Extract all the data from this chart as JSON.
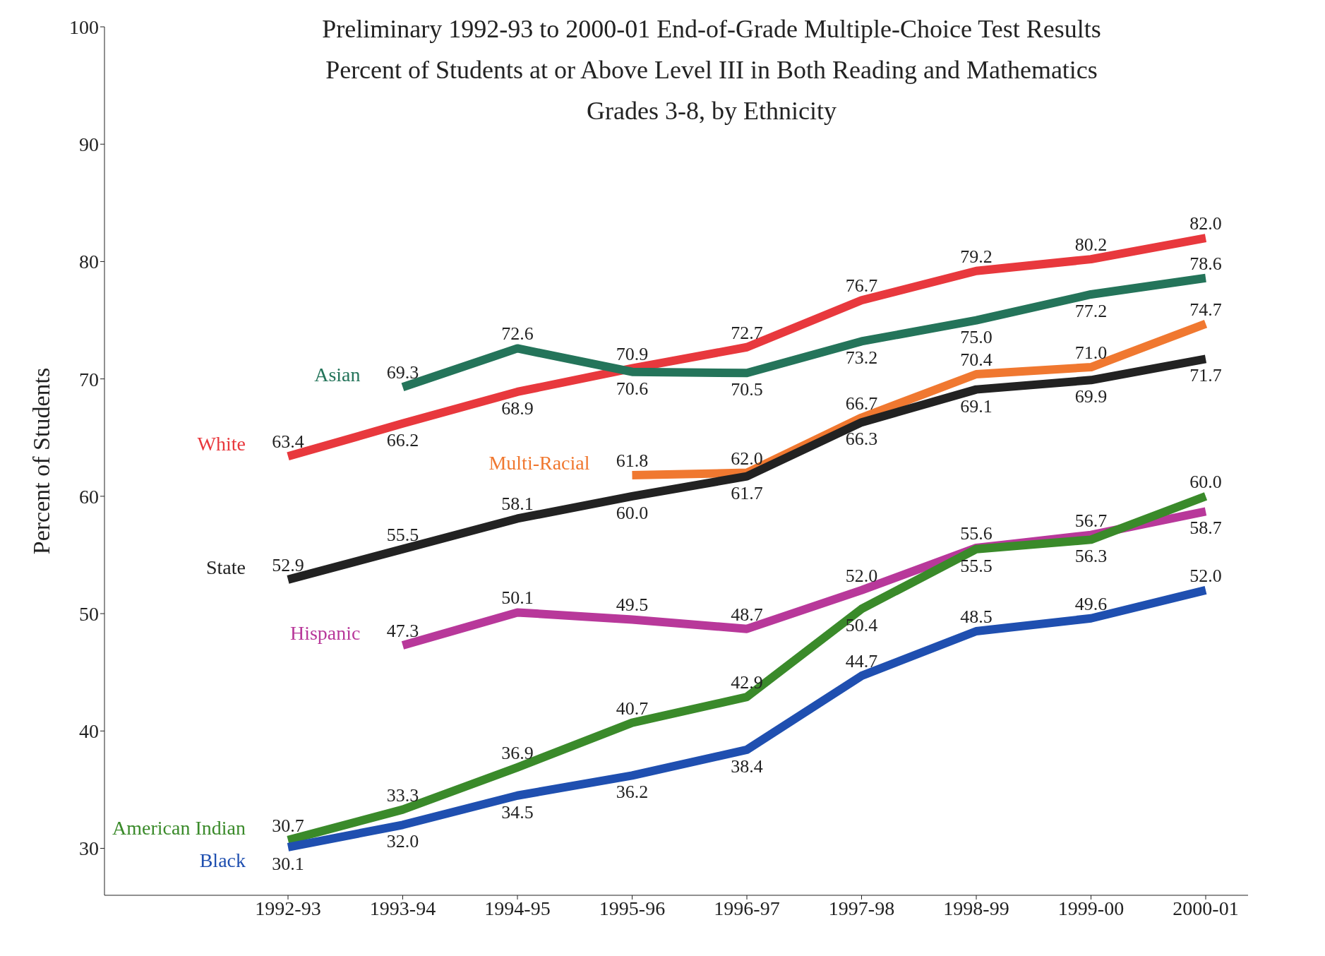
{
  "chart_data": {
    "type": "line",
    "title": "Preliminary 1992-93 to 2000-01 End-of-Grade Multiple-Choice Test Results\nPercent of Students at or Above Level III in Both Reading and Mathematics\nGrades 3-8, by Ethnicity",
    "ylabel": "Percent of Students",
    "categories": [
      "1992-93",
      "1993-94",
      "1994-95",
      "1995-96",
      "1996-97",
      "1997-98",
      "1998-99",
      "1999-00",
      "2000-01"
    ],
    "series": [
      {
        "name": "White",
        "color": "#e8383d",
        "values": [
          63.4,
          66.2,
          68.9,
          70.9,
          72.7,
          76.7,
          79.2,
          80.2,
          82.0
        ],
        "value_labels": [
          "63.4",
          "66.2",
          "68.9",
          "70.9",
          "72.7",
          "76.7",
          "79.2",
          "80.2",
          "82.0"
        ]
      },
      {
        "name": "Asian",
        "color": "#24745a",
        "values": [
          null,
          69.3,
          72.6,
          70.6,
          70.5,
          73.2,
          75.0,
          77.2,
          78.6
        ],
        "value_labels": [
          null,
          "69.3",
          "72.6",
          "70.6",
          "70.5",
          "73.2",
          "75.0",
          "77.2",
          "78.6"
        ]
      },
      {
        "name": "Multi-Racial",
        "color": "#f07830",
        "values": [
          null,
          null,
          null,
          61.8,
          62.0,
          66.7,
          70.4,
          71.0,
          74.7
        ],
        "value_labels": [
          null,
          null,
          null,
          "61.8",
          "62.0",
          "66.7",
          "70.4",
          "71.0",
          "74.7"
        ]
      },
      {
        "name": "State",
        "color": "#222222",
        "values": [
          52.9,
          55.5,
          58.1,
          60.0,
          61.7,
          66.3,
          69.1,
          69.9,
          71.7
        ],
        "value_labels": [
          "52.9",
          "55.5",
          "58.1",
          "60.0",
          "61.7",
          "66.3",
          "69.1",
          "69.9",
          "71.7"
        ]
      },
      {
        "name": "Hispanic",
        "color": "#b8389a",
        "values": [
          null,
          47.3,
          50.1,
          49.5,
          48.7,
          52.0,
          55.6,
          56.7,
          58.7
        ],
        "value_labels": [
          null,
          "47.3",
          "50.1",
          "49.5",
          "48.7",
          "52.0",
          "55.6",
          "56.7",
          "58.7"
        ]
      },
      {
        "name": "American Indian",
        "color": "#3a8a2a",
        "values": [
          30.7,
          33.3,
          36.9,
          40.7,
          42.9,
          50.4,
          55.5,
          56.3,
          60.0
        ],
        "value_labels": [
          "30.7",
          "33.3",
          "36.9",
          "40.7",
          "42.9",
          "50.4",
          "55.5",
          "56.3",
          "60.0"
        ]
      },
      {
        "name": "Black",
        "color": "#1f4fb0",
        "values": [
          30.1,
          32.0,
          34.5,
          36.2,
          38.4,
          44.7,
          48.5,
          49.6,
          52.0
        ],
        "value_labels": [
          "30.1",
          "32.0",
          "34.5",
          "36.2",
          "38.4",
          "44.7",
          "48.5",
          "49.6",
          "52.0"
        ]
      }
    ],
    "ylim": [
      26,
      100
    ],
    "yticks": [
      30,
      40,
      50,
      60,
      70,
      80,
      90,
      100
    ],
    "grid": false,
    "legend": false,
    "marker": "none",
    "line_style": "solid"
  }
}
